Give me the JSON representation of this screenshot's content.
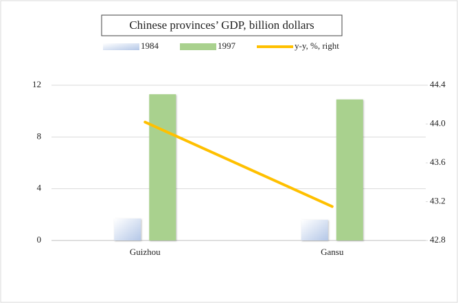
{
  "chart_data": {
    "type": "bar_line",
    "title": "Chinese provinces’ GDP, billion dollars",
    "categories": [
      "Guizhou",
      "Gansu"
    ],
    "series": [
      {
        "name": "1984",
        "type": "bar",
        "color": "#b4c7e7",
        "values": [
          1.7,
          1.6
        ]
      },
      {
        "name": "1997",
        "type": "bar",
        "color": "#a9d18e",
        "values": [
          11.3,
          10.9
        ]
      },
      {
        "name": "y-y, %, right",
        "type": "line",
        "axis": "y2",
        "color": "#ffc000",
        "values": [
          44.02,
          43.15
        ]
      }
    ],
    "ylim": [
      0,
      12
    ],
    "yticks": [
      0,
      4,
      8,
      12
    ],
    "y2lim": [
      42.8,
      44.4
    ],
    "y2ticks": [
      42.8,
      43.2,
      43.6,
      {
        "value": 44,
        "label": "44.0"
      },
      44.4
    ],
    "grid": true
  }
}
